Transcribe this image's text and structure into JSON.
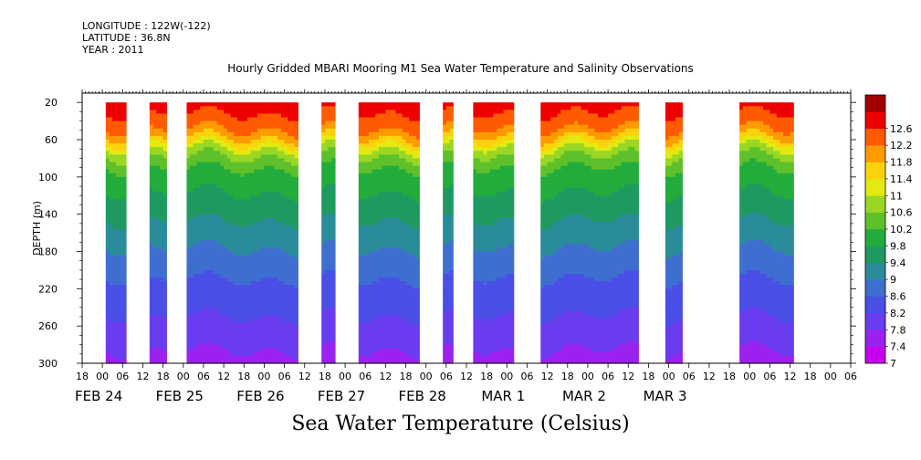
{
  "header": {
    "longitude": "LONGITUDE : 122W(-122)",
    "latitude": "LATITUDE : 36.8N",
    "year": "YEAR : 2011"
  },
  "title": "Hourly Gridded MBARI Mooring M1 Sea Water Temperature and Salinity Observations",
  "footer_title": "Sea Water Temperature (Celsius)",
  "chart_data": {
    "type": "heatmap",
    "title": "Hourly Gridded MBARI Mooring M1 Sea Water Temperature and Salinity Observations",
    "xlabel": "",
    "ylabel": "DEPTH (m)",
    "colorbar_label": "Sea Water Temperature (Celsius)",
    "x_unit": "hours since FEB 24 00",
    "x_range_hours": [
      -6,
      222
    ],
    "y_range_m": [
      10,
      300
    ],
    "y_reversed": true,
    "y_ticks": [
      20,
      60,
      100,
      140,
      180,
      220,
      260,
      300
    ],
    "x_hour_ticks": [
      "18",
      "00",
      "06",
      "12",
      "18",
      "00",
      "06",
      "12",
      "18",
      "00",
      "06",
      "12",
      "18",
      "00",
      "06",
      "12",
      "18",
      "00",
      "06",
      "12",
      "18",
      "00",
      "06",
      "12",
      "18",
      "00",
      "06",
      "12",
      "18",
      "00",
      "06",
      "12",
      "18",
      "00",
      "06",
      "12",
      "18",
      "00",
      "06",
      "12",
      "18"
    ],
    "date_labels": [
      {
        "label": "FEB 24",
        "hour": 0
      },
      {
        "label": "FEB 25",
        "hour": 24
      },
      {
        "label": "FEB 26",
        "hour": 48
      },
      {
        "label": "FEB 27",
        "hour": 72
      },
      {
        "label": "FEB 28",
        "hour": 96
      },
      {
        "label": "MAR  1",
        "hour": 120
      },
      {
        "label": "MAR  2",
        "hour": 144
      },
      {
        "label": "MAR  3",
        "hour": 168
      }
    ],
    "data_segments_hours": [
      [
        1,
        7
      ],
      [
        14,
        19
      ],
      [
        25,
        58
      ],
      [
        65,
        69
      ],
      [
        76,
        94
      ],
      [
        101,
        104
      ],
      [
        110,
        122
      ],
      [
        130,
        159
      ],
      [
        167,
        172
      ],
      [
        189,
        205
      ]
    ],
    "depth_profile_C": [
      {
        "depth": 20,
        "temp": 12.4
      },
      {
        "depth": 45,
        "temp": 12.0
      },
      {
        "depth": 60,
        "temp": 11.3
      },
      {
        "depth": 70,
        "temp": 10.6
      },
      {
        "depth": 85,
        "temp": 9.9
      },
      {
        "depth": 110,
        "temp": 9.5
      },
      {
        "depth": 140,
        "temp": 9.1
      },
      {
        "depth": 170,
        "temp": 8.7
      },
      {
        "depth": 200,
        "temp": 8.3
      },
      {
        "depth": 240,
        "temp": 7.9
      },
      {
        "depth": 280,
        "temp": 7.5
      },
      {
        "depth": 300,
        "temp": 7.2
      }
    ],
    "colorbar": {
      "levels": [
        7,
        7.4,
        7.8,
        8.2,
        8.6,
        9,
        9.4,
        9.8,
        10.2,
        10.6,
        11,
        11.4,
        11.8,
        12.2,
        12.6
      ],
      "labels": [
        "7",
        "7.4",
        "7.8",
        "8.2",
        "8.6",
        "9",
        "9.4",
        "9.8",
        "10.2",
        "10.6",
        "11",
        "11.4",
        "11.8",
        "12.2",
        "12.6"
      ],
      "colors": [
        "#c800f0",
        "#9b22ee",
        "#6a3cf0",
        "#4a4fe6",
        "#3e6fd0",
        "#2a8c9a",
        "#1e9a60",
        "#22ac3c",
        "#5ec02a",
        "#9ad624",
        "#e2ea12",
        "#fbd20c",
        "#ff9a00",
        "#ff5a00",
        "#ee0000",
        "#a00000"
      ]
    }
  }
}
